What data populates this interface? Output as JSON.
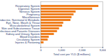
{
  "chart_data": {
    "type": "bar",
    "orientation": "horizontal",
    "x_label": "Total cost per YLD ($ millions)",
    "categories": [
      "Respiratory System",
      "Digestive System",
      "Nervous System",
      "Pregnancy",
      "Miscellaneous",
      "Endocrine, Nutritional & Metabolic",
      "Eye, Nose, Mouth & Throat",
      "Musculoskeletal System",
      "Skin and Subcutaneous Tissue",
      "Infectious and Parasitic Diseases",
      "Kidney and Urinary System",
      "Blood Disorders",
      "Circulatory System",
      "Injuries & Poisoning"
    ],
    "values": [
      2800,
      2500,
      1700,
      1600,
      1500,
      1450,
      1100,
      1050,
      900,
      800,
      650,
      400,
      350,
      150
    ],
    "color": "#f07f1e",
    "xlim": [
      0,
      3000
    ],
    "xticks": [
      0,
      1000,
      2000,
      3000
    ]
  }
}
